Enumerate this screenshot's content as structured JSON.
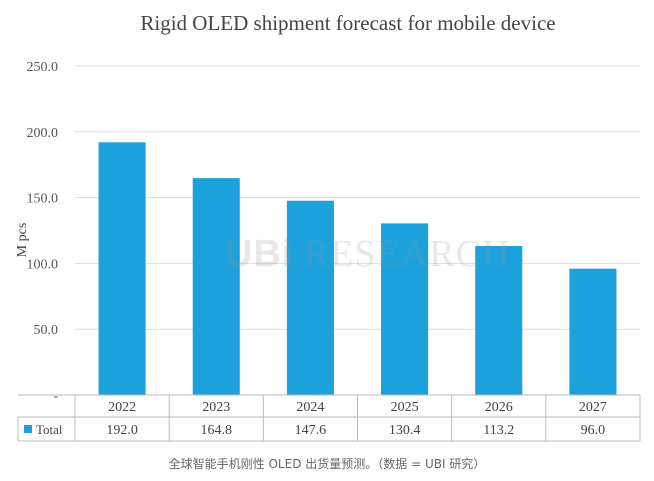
{
  "chart_data": {
    "type": "bar",
    "title": "Rigid OLED shipment forecast for mobile device",
    "ylabel": "M pcs",
    "xlabel": "",
    "categories": [
      "2022",
      "2023",
      "2024",
      "2025",
      "2026",
      "2027"
    ],
    "series": [
      {
        "name": "Total",
        "values": [
          192.0,
          164.8,
          147.6,
          130.4,
          113.2,
          96.0
        ]
      }
    ],
    "value_labels": [
      "192.0",
      "164.8",
      "147.6",
      "130.4",
      "113.2",
      "96.0"
    ],
    "ylim": [
      0,
      250
    ],
    "yticks": [
      0,
      50,
      100,
      150,
      200,
      250
    ],
    "ytick_labels": [
      "-",
      "50.0",
      "100.0",
      "150.0",
      "200.0",
      "250.0"
    ],
    "grid": true,
    "legend": "data-table",
    "bar_color": "#1da1dc",
    "watermark": {
      "logo": "UBi",
      "text": "RESEARCH"
    }
  },
  "caption": "全球智能手机刚性 OLED 出货量预测。（数据 = UBI 研究）"
}
